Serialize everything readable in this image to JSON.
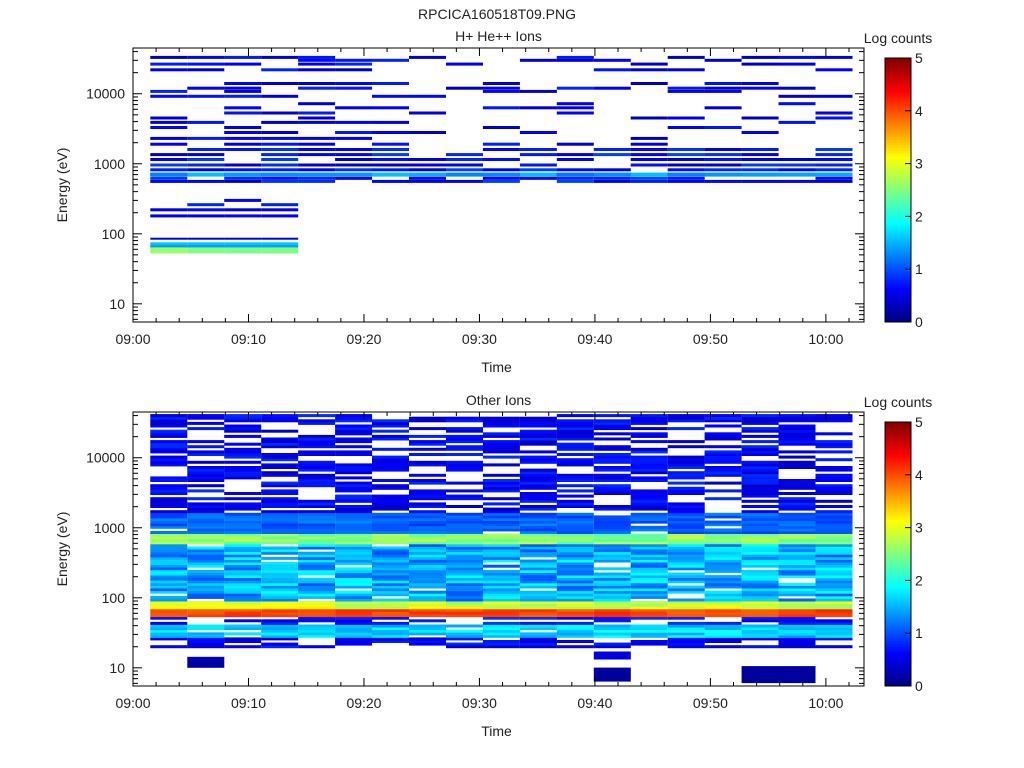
{
  "file_title": "RPCICA160518T09.PNG",
  "chart_data": [
    {
      "type": "heatmap",
      "title": "H+ He++ Ions",
      "xlabel": "Time",
      "ylabel": "Energy (eV)",
      "x_ticks": [
        "09:00",
        "09:10",
        "09:20",
        "09:30",
        "09:40",
        "09:50",
        "10:00"
      ],
      "x_range": [
        "09:00",
        "10:03"
      ],
      "y_scale": "log",
      "y_range": [
        5.5,
        45000
      ],
      "y_ticks": [
        "10",
        "100",
        "1000",
        "10000"
      ],
      "colorbar": {
        "label": "Log counts",
        "range": [
          0,
          5
        ],
        "ticks": [
          "0",
          "1",
          "2",
          "3",
          "4",
          "5"
        ],
        "colormap": "jet"
      },
      "time_bins_start_min": [
        1.5,
        4.7,
        7.9,
        11.1,
        14.3,
        17.5,
        20.7,
        23.9,
        27.1,
        30.3,
        33.5,
        36.7,
        39.9,
        43.1,
        46.3,
        49.5,
        52.7,
        55.9,
        59.1
      ],
      "time_bin_width_min": 3.2,
      "energy_bins_eV": [
        33000,
        30000,
        26500,
        22000,
        14000,
        12000,
        10800,
        9200,
        7200,
        6300,
        5300,
        4500,
        3900,
        3300,
        2800,
        2300,
        1900,
        1600,
        1350,
        1150,
        960,
        820,
        700,
        620,
        560,
        300,
        260,
        220,
        180,
        85,
        73,
        67,
        58
      ],
      "level_note": "values are log counts per cell, 0 = no data shown",
      "dominant_features": {
        "ion_band_eV": [
          550,
          1700
        ],
        "low_energy_band_eV": [
          55,
          75
        ],
        "low_energy_band_time_min": [
          1.5,
          14.3
        ],
        "low_energy_band_levels": [
          2.0,
          2.5,
          2.5,
          2.5
        ]
      }
    },
    {
      "type": "heatmap",
      "title": "Other Ions",
      "xlabel": "Time",
      "ylabel": "Energy (eV)",
      "x_ticks": [
        "09:00",
        "09:10",
        "09:20",
        "09:30",
        "09:40",
        "09:50",
        "10:00"
      ],
      "x_range": [
        "09:00",
        "10:03"
      ],
      "y_scale": "log",
      "y_range": [
        5.5,
        45000
      ],
      "y_ticks": [
        "10",
        "100",
        "1000",
        "10000"
      ],
      "colorbar": {
        "label": "Log counts",
        "range": [
          0,
          5
        ],
        "ticks": [
          "0",
          "1",
          "2",
          "3",
          "4",
          "5"
        ],
        "colormap": "jet"
      },
      "dominant_features": {
        "band_720eV_level": 2.5,
        "band_65eV_level": 4.0,
        "band_30eV_level": 1.8,
        "broad_band_eV": [
          90,
          1500
        ],
        "broad_band_level": 1.5
      }
    }
  ]
}
